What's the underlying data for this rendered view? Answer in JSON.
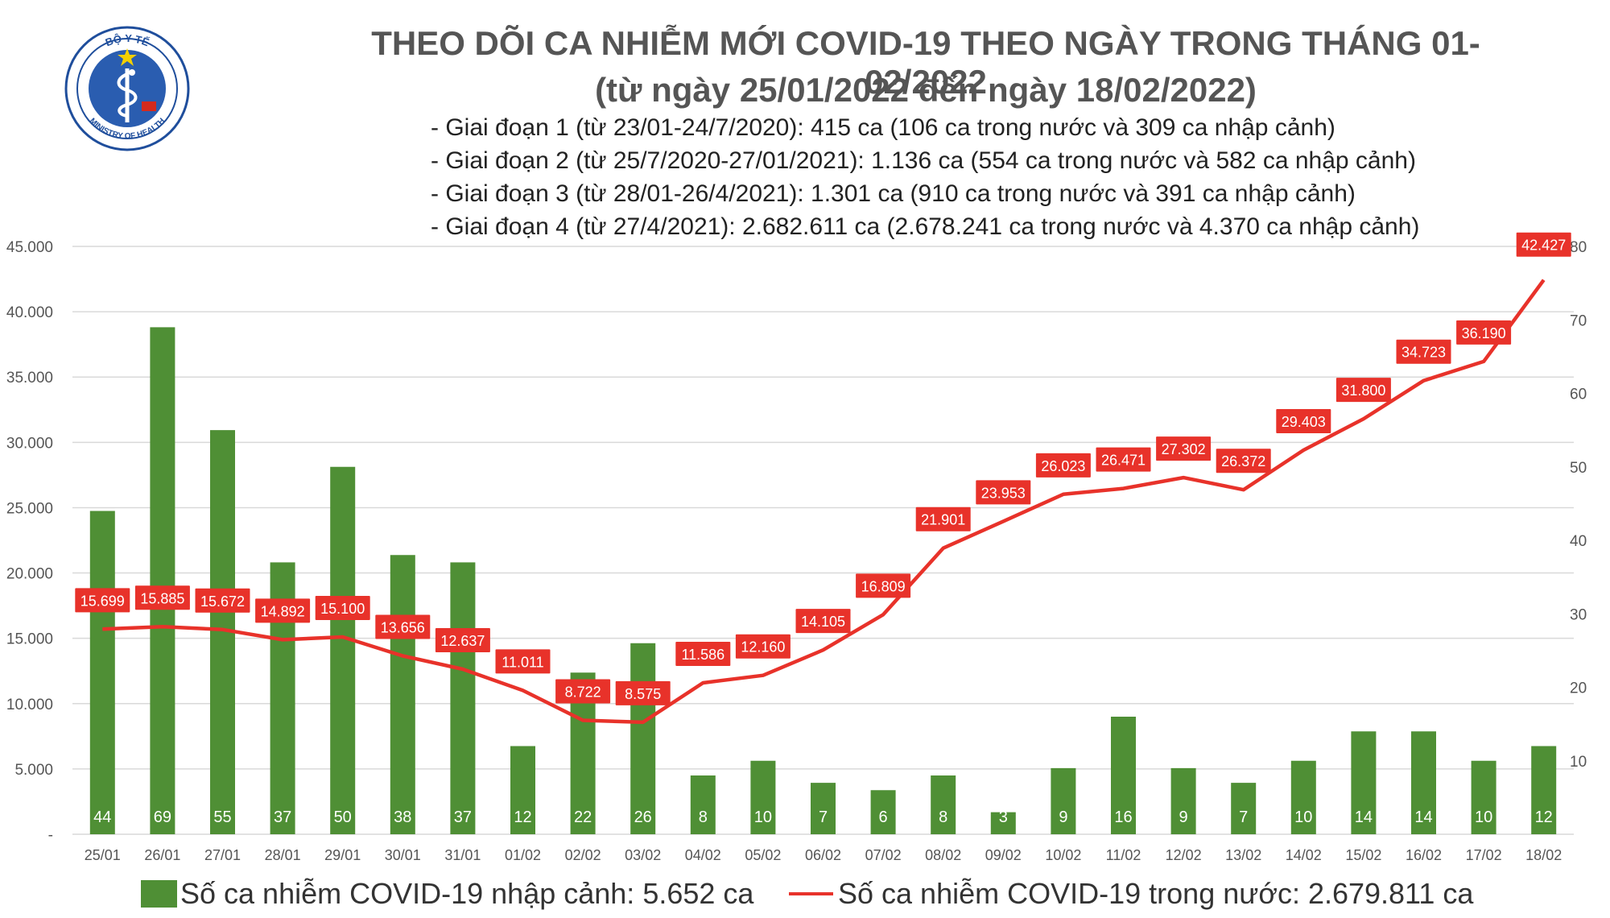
{
  "header": {
    "title": "THEO DÕI CA NHIỄM MỚI COVID-19 THEO NGÀY TRONG THÁNG 01-02/2022",
    "subtitle": "(từ ngày 25/01/2022 đến ngày 18/02/2022)",
    "phases": [
      "- Giai đoạn 1 (từ 23/01-24/7/2020): 415 ca (106 ca trong nước và 309 ca nhập cảnh)",
      "- Giai đoạn 2 (từ 25/7/2020-27/01/2021): 1.136 ca (554 ca trong nước và 582 ca nhập cảnh)",
      "- Giai đoạn 3 (từ 28/01-26/4/2021): 1.301 ca (910 ca trong nước và 391 ca nhập cảnh)",
      "- Giai đoạn 4 (từ 27/4/2021): 2.682.611 ca (2.678.241 ca trong nước và 4.370 ca nhập cảnh)"
    ]
  },
  "logo": {
    "top_text": "BỘ Y TẾ",
    "bottom_text": "MINISTRY OF HEALTH",
    "colors": {
      "ring": "#1f4e9c",
      "fill": "#2a5db0",
      "star": "#f4d000",
      "flag": "#d42a1e"
    }
  },
  "colors": {
    "bar": "#4f8f35",
    "line": "#e8322a",
    "label_bg": "#e8322a",
    "grid": "#d9d9d9",
    "axis_text": "#555555"
  },
  "legend": {
    "bar_label": "Số ca nhiễm COVID-19 nhập cảnh: 5.652 ca",
    "line_label": "Số ca nhiễm COVID-19 trong nước: 2.679.811 ca"
  },
  "chart_data": {
    "type": "bar",
    "categories": [
      "25/01",
      "26/01",
      "27/01",
      "28/01",
      "29/01",
      "30/01",
      "31/01",
      "01/02",
      "02/02",
      "03/02",
      "04/02",
      "05/02",
      "06/02",
      "07/02",
      "08/02",
      "09/02",
      "10/02",
      "11/02",
      "12/02",
      "13/02",
      "14/02",
      "15/02",
      "16/02",
      "17/02",
      "18/02"
    ],
    "left_axis": {
      "ylim": [
        0,
        45000
      ],
      "ticks": [
        "-",
        "5.000",
        "10.000",
        "15.000",
        "20.000",
        "25.000",
        "30.000",
        "35.000",
        "40.000",
        "45.000"
      ]
    },
    "right_axis": {
      "ylim": [
        0,
        80
      ],
      "ticks": [
        "10",
        "20",
        "30",
        "40",
        "50",
        "60",
        "70",
        "80"
      ]
    },
    "grid": true,
    "legend_position": "bottom",
    "series": [
      {
        "name": "Số ca nhiễm COVID-19 nhập cảnh: 5.652 ca",
        "type": "bar",
        "axis": "right",
        "values": [
          44,
          69,
          55,
          37,
          50,
          38,
          37,
          12,
          22,
          26,
          8,
          10,
          7,
          6,
          8,
          3,
          9,
          16,
          9,
          7,
          10,
          14,
          14,
          10,
          12
        ],
        "labels": [
          "44",
          "69",
          "55",
          "37",
          "50",
          "38",
          "37",
          "12",
          "22",
          "26",
          "8",
          "10",
          "7",
          "6",
          "8",
          "3",
          "9",
          "16",
          "9",
          "7",
          "10",
          "14",
          "14",
          "10",
          "12"
        ]
      },
      {
        "name": "Số ca nhiễm COVID-19 trong nước: 2.679.811 ca",
        "type": "line",
        "axis": "left",
        "values": [
          15699,
          15885,
          15672,
          14892,
          15100,
          13656,
          12637,
          11011,
          8722,
          8575,
          11586,
          12160,
          14105,
          16809,
          21901,
          23953,
          26023,
          26471,
          27302,
          26372,
          29403,
          31800,
          34723,
          36190,
          42427
        ],
        "labels": [
          "15.699",
          "15.885",
          "15.672",
          "14.892",
          "15.100",
          "13.656",
          "12.637",
          "11.011",
          "8.722",
          "8.575",
          "11.586",
          "12.160",
          "14.105",
          "16.809",
          "21.901",
          "23.953",
          "26.023",
          "26.471",
          "27.302",
          "26.372",
          "29.403",
          "31.800",
          "34.723",
          "36.190",
          "42.427"
        ]
      }
    ]
  }
}
